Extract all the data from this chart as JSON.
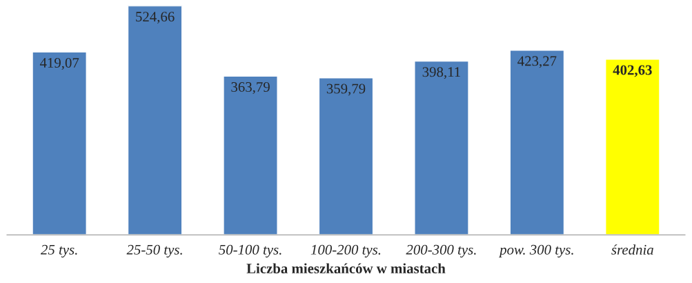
{
  "chart_data": {
    "type": "bar",
    "xlabel": "Liczba mieszkańców w miastach",
    "categories": [
      "25 tys.",
      "25-50 tys.",
      "50-100 tys.",
      "100-200 tys.",
      "200-300 tys.",
      "pow. 300 tys.",
      "średnia"
    ],
    "values": [
      419.07,
      524.66,
      363.79,
      359.79,
      398.11,
      423.27,
      402.63
    ],
    "value_labels": [
      "419,07",
      "524,66",
      "363,79",
      "359,79",
      "398,11",
      "423,27",
      "402,63"
    ],
    "colors": [
      "#4f81bd",
      "#4f81bd",
      "#4f81bd",
      "#4f81bd",
      "#4f81bd",
      "#4f81bd",
      "#ffff00"
    ],
    "grid": false
  }
}
